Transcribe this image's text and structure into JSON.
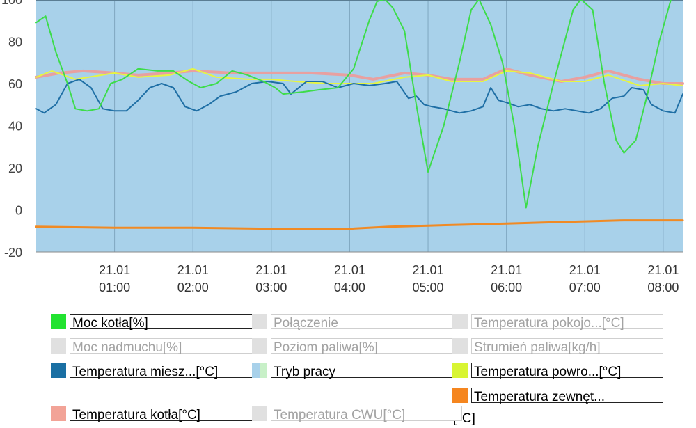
{
  "chart_data": {
    "type": "line",
    "background_color": "#a8d1ea",
    "grid": true,
    "ylim": [
      -20,
      100
    ],
    "yticks": [
      -20,
      0,
      20,
      40,
      60,
      80,
      100
    ],
    "xlim": [
      0.0,
      8.25
    ],
    "xticks": [
      {
        "x": 1,
        "date": "21.01",
        "time": "01:00"
      },
      {
        "x": 2,
        "date": "21.01",
        "time": "02:00"
      },
      {
        "x": 3,
        "date": "21.01",
        "time": "03:00"
      },
      {
        "x": 4,
        "date": "21.01",
        "time": "04:00"
      },
      {
        "x": 5,
        "date": "21.01",
        "time": "05:00"
      },
      {
        "x": 6,
        "date": "21.01",
        "time": "06:00"
      },
      {
        "x": 7,
        "date": "21.01",
        "time": "07:00"
      },
      {
        "x": 8,
        "date": "21.01",
        "time": "08:00"
      }
    ],
    "series": [
      {
        "name": "Temperatura kotła[°C]",
        "color": "#e8a0a0",
        "width": 4,
        "points": [
          [
            0.0,
            63
          ],
          [
            0.3,
            65
          ],
          [
            0.6,
            66
          ],
          [
            1.0,
            65
          ],
          [
            1.3,
            64
          ],
          [
            1.7,
            65
          ],
          [
            2.0,
            66
          ],
          [
            2.5,
            65
          ],
          [
            3.0,
            65
          ],
          [
            3.5,
            65
          ],
          [
            4.0,
            64
          ],
          [
            4.3,
            62
          ],
          [
            4.7,
            65
          ],
          [
            5.0,
            64
          ],
          [
            5.3,
            62
          ],
          [
            5.7,
            62
          ],
          [
            6.0,
            67
          ],
          [
            6.3,
            64
          ],
          [
            6.7,
            61
          ],
          [
            7.0,
            63
          ],
          [
            7.3,
            66
          ],
          [
            7.7,
            62
          ],
          [
            8.0,
            60
          ],
          [
            8.25,
            60
          ]
        ]
      },
      {
        "name": "Temperatura powro...[°C]",
        "color": "#e6f542",
        "width": 2,
        "points": [
          [
            0.0,
            63
          ],
          [
            0.2,
            66
          ],
          [
            0.5,
            62
          ],
          [
            1.0,
            65
          ],
          [
            1.3,
            63
          ],
          [
            1.7,
            64
          ],
          [
            2.0,
            67
          ],
          [
            2.3,
            63
          ],
          [
            2.7,
            62
          ],
          [
            3.0,
            62
          ],
          [
            3.3,
            61
          ],
          [
            3.7,
            60
          ],
          [
            4.0,
            60
          ],
          [
            4.3,
            60
          ],
          [
            4.7,
            63
          ],
          [
            5.0,
            64
          ],
          [
            5.3,
            61
          ],
          [
            5.7,
            61
          ],
          [
            6.0,
            66
          ],
          [
            6.3,
            65
          ],
          [
            6.7,
            61
          ],
          [
            7.0,
            61
          ],
          [
            7.3,
            64
          ],
          [
            7.7,
            59
          ],
          [
            8.0,
            60
          ],
          [
            8.25,
            59
          ]
        ]
      },
      {
        "name": "Temperatura miesz...[°C]",
        "color": "#1f6fa5",
        "width": 2,
        "points": [
          [
            0.0,
            48
          ],
          [
            0.1,
            46
          ],
          [
            0.25,
            50
          ],
          [
            0.4,
            60
          ],
          [
            0.55,
            62
          ],
          [
            0.7,
            58
          ],
          [
            0.85,
            48
          ],
          [
            1.0,
            47
          ],
          [
            1.15,
            47
          ],
          [
            1.3,
            52
          ],
          [
            1.45,
            58
          ],
          [
            1.6,
            60
          ],
          [
            1.75,
            58
          ],
          [
            1.9,
            49
          ],
          [
            2.05,
            47
          ],
          [
            2.2,
            50
          ],
          [
            2.35,
            54
          ],
          [
            2.55,
            56
          ],
          [
            2.75,
            60
          ],
          [
            2.95,
            61
          ],
          [
            3.15,
            60
          ],
          [
            3.25,
            55
          ],
          [
            3.45,
            61
          ],
          [
            3.65,
            61
          ],
          [
            3.85,
            58
          ],
          [
            4.05,
            60
          ],
          [
            4.25,
            59
          ],
          [
            4.45,
            60
          ],
          [
            4.6,
            61
          ],
          [
            4.75,
            53
          ],
          [
            4.85,
            54
          ],
          [
            4.95,
            50
          ],
          [
            5.05,
            49
          ],
          [
            5.2,
            48
          ],
          [
            5.4,
            46
          ],
          [
            5.55,
            47
          ],
          [
            5.7,
            49
          ],
          [
            5.8,
            58
          ],
          [
            5.9,
            52
          ],
          [
            6.0,
            51
          ],
          [
            6.15,
            49
          ],
          [
            6.3,
            50
          ],
          [
            6.45,
            48
          ],
          [
            6.6,
            47
          ],
          [
            6.75,
            48
          ],
          [
            6.9,
            47
          ],
          [
            7.05,
            46
          ],
          [
            7.2,
            48
          ],
          [
            7.35,
            53
          ],
          [
            7.5,
            54
          ],
          [
            7.6,
            58
          ],
          [
            7.75,
            57
          ],
          [
            7.85,
            50
          ],
          [
            8.0,
            47
          ],
          [
            8.15,
            46
          ],
          [
            8.25,
            55
          ]
        ]
      },
      {
        "name": "Moc kotła[%]",
        "color": "#3ddc4a",
        "width": 2,
        "points": [
          [
            0.0,
            89
          ],
          [
            0.12,
            92
          ],
          [
            0.25,
            75
          ],
          [
            0.4,
            60
          ],
          [
            0.5,
            48
          ],
          [
            0.65,
            47
          ],
          [
            0.8,
            48
          ],
          [
            0.95,
            60
          ],
          [
            1.1,
            62
          ],
          [
            1.3,
            67
          ],
          [
            1.55,
            66
          ],
          [
            1.75,
            66
          ],
          [
            1.95,
            61
          ],
          [
            2.1,
            58
          ],
          [
            2.3,
            60
          ],
          [
            2.5,
            66
          ],
          [
            2.7,
            64
          ],
          [
            2.9,
            61
          ],
          [
            3.05,
            58
          ],
          [
            3.15,
            55
          ],
          [
            3.4,
            56
          ],
          [
            3.6,
            57
          ],
          [
            3.85,
            58
          ],
          [
            4.05,
            67
          ],
          [
            4.25,
            90
          ],
          [
            4.35,
            99
          ],
          [
            4.45,
            100
          ],
          [
            4.55,
            96
          ],
          [
            4.7,
            85
          ],
          [
            4.85,
            50
          ],
          [
            5.0,
            18
          ],
          [
            5.2,
            40
          ],
          [
            5.4,
            70
          ],
          [
            5.55,
            95
          ],
          [
            5.65,
            100
          ],
          [
            5.8,
            88
          ],
          [
            5.95,
            70
          ],
          [
            6.1,
            40
          ],
          [
            6.25,
            1
          ],
          [
            6.4,
            30
          ],
          [
            6.6,
            60
          ],
          [
            6.85,
            95
          ],
          [
            6.95,
            100
          ],
          [
            7.1,
            95
          ],
          [
            7.25,
            60
          ],
          [
            7.4,
            33
          ],
          [
            7.5,
            27
          ],
          [
            7.65,
            33
          ],
          [
            7.8,
            55
          ],
          [
            7.95,
            80
          ],
          [
            8.1,
            100
          ]
        ]
      },
      {
        "name": "Temperatura zewnęt...[°C]",
        "color": "#f08a24",
        "width": 3,
        "points": [
          [
            0.0,
            -8
          ],
          [
            1.0,
            -8.5
          ],
          [
            2.0,
            -8.5
          ],
          [
            3.0,
            -9
          ],
          [
            4.0,
            -9
          ],
          [
            4.5,
            -8
          ],
          [
            5.0,
            -7.5
          ],
          [
            5.5,
            -7
          ],
          [
            6.0,
            -6.5
          ],
          [
            6.5,
            -6
          ],
          [
            7.0,
            -5.5
          ],
          [
            7.5,
            -5
          ],
          [
            8.0,
            -5
          ],
          [
            8.25,
            -5
          ]
        ]
      }
    ]
  },
  "legend": [
    {
      "label": "Moc kotła[%]",
      "color": "#22e330",
      "active": true
    },
    {
      "label": "Połączenie",
      "color": "#e0e0e0",
      "active": false
    },
    {
      "label": "Temperatura pokojo...[°C]",
      "color": "#e0e0e0",
      "active": false
    },
    {
      "label": "Moc nadmuchu[%]",
      "color": "#e0e0e0",
      "active": false
    },
    {
      "label": "Poziom paliwa[%]",
      "color": "#e0e0e0",
      "active": false
    },
    {
      "label": "Strumień paliwa[kg/h]",
      "color": "#e0e0e0",
      "active": false
    },
    {
      "label": "Temperatura miesz...[°C]",
      "color": "#1a6fa3",
      "active": true
    },
    {
      "label": "Tryb pracy",
      "color": "#a8d1ea",
      "color2": "#c8f0c8",
      "active": true
    },
    {
      "label": "Temperatura powro...[°C]",
      "color": "#d8f532",
      "active": true
    },
    {
      "label": "Temperatura zewnęt...",
      "label2": "[°C]",
      "color": "#f5861f",
      "active": true
    },
    {
      "label": "Temperatura kotła[°C]",
      "color": "#f2a397",
      "active": true
    },
    {
      "label": "Temperatura CWU[°C]",
      "color": "#e0e0e0",
      "active": false
    }
  ]
}
